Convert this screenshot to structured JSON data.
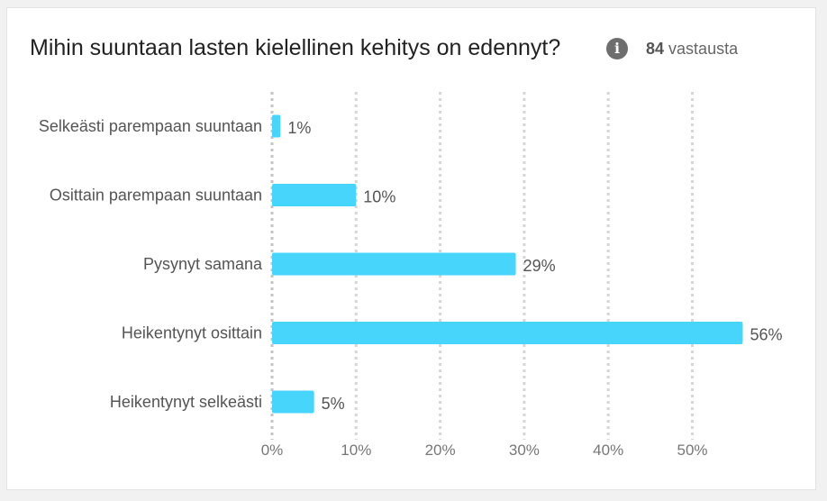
{
  "card": {
    "title": "Mihin suuntaan lasten kielellinen kehitys on edennyt?",
    "info_icon": "info-icon",
    "response_count": "84",
    "response_label": "vastausta"
  },
  "colors": {
    "bar": "#47d5fb",
    "grid": "#d6d6d6",
    "axis_text": "#777777",
    "label_text": "#555555"
  },
  "chart_data": {
    "type": "bar",
    "orientation": "horizontal",
    "title": "Mihin suuntaan lasten kielellinen kehitys on edennyt?",
    "categories": [
      "Selkeästi parempaan suuntaan",
      "Osittain parempaan suuntaan",
      "Pysynyt samana",
      "Heikentynyt osittain",
      "Heikentynyt selkeästi"
    ],
    "values": [
      1,
      10,
      29,
      56,
      5
    ],
    "value_labels": [
      "1%",
      "10%",
      "29%",
      "56%",
      "5%"
    ],
    "x_ticks": [
      "0%",
      "10%",
      "20%",
      "30%",
      "40%",
      "50%"
    ],
    "xlim": [
      0,
      60
    ],
    "xlabel": "",
    "ylabel": "",
    "grid": true,
    "legend": "none"
  }
}
